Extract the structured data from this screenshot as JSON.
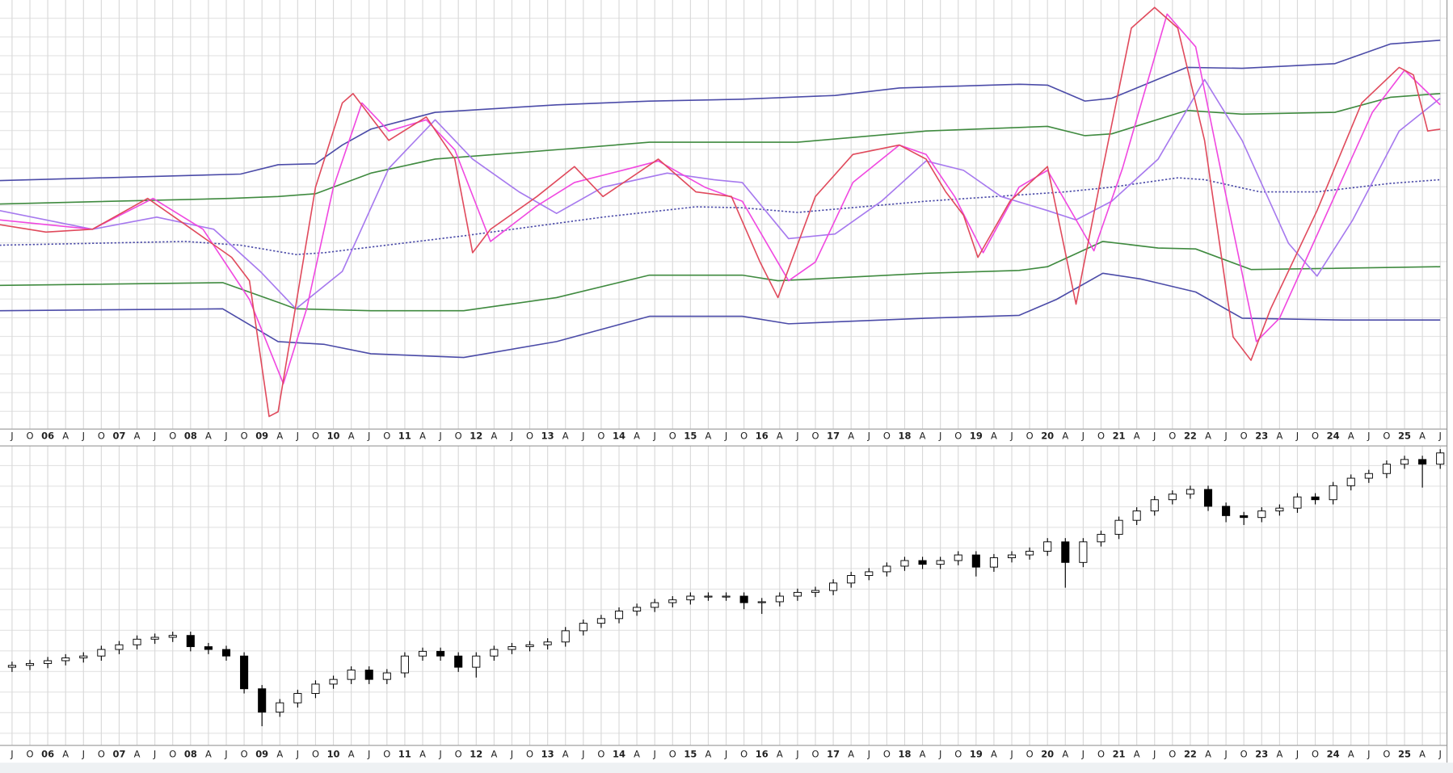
{
  "chart_data": [
    {
      "type": "line",
      "grid": true,
      "xlim": [
        -0.675,
        80.3
      ],
      "ylim": [
        0,
        460
      ],
      "categories": [
        "J",
        "O",
        "06",
        "A",
        "J",
        "O",
        "07",
        "A",
        "J",
        "O",
        "08",
        "A",
        "J",
        "O",
        "09",
        "A",
        "J",
        "O",
        "10",
        "A",
        "J",
        "O",
        "11",
        "A",
        "J",
        "O",
        "12",
        "A",
        "J",
        "O",
        "13",
        "A",
        "J",
        "O",
        "14",
        "A",
        "J",
        "O",
        "15",
        "A",
        "J",
        "O",
        "16",
        "A",
        "J",
        "O",
        "17",
        "A",
        "J",
        "O",
        "18",
        "A",
        "J",
        "O",
        "19",
        "A",
        "J",
        "O",
        "20",
        "A",
        "J",
        "O",
        "21",
        "A",
        "J",
        "O",
        "22",
        "A",
        "J",
        "O",
        "23",
        "A",
        "J",
        "O",
        "24",
        "A",
        "J",
        "O",
        "25",
        "A",
        "J"
      ],
      "series": [
        {
          "color": "#4b4ba8",
          "x": [
            -0.7,
            12.8,
            14.9,
            17.0,
            18.5,
            20.1,
            23.7,
            30.5,
            35.7,
            40.9,
            46.1,
            49.7,
            56.4,
            58.0,
            60.1,
            61.6,
            65.8,
            68.9,
            74.1,
            77.2,
            80.0
          ],
          "values": [
            267,
            274,
            284,
            285,
            305,
            322,
            340,
            348,
            352,
            354,
            358,
            366,
            370,
            369,
            352,
            355,
            388,
            387,
            392,
            413,
            417
          ]
        },
        {
          "color": "#3f8a3f",
          "x": [
            -0.7,
            12.3,
            14.9,
            17.0,
            20.1,
            23.7,
            30.5,
            35.7,
            44.0,
            51.2,
            58.0,
            60.1,
            61.6,
            65.8,
            68.9,
            74.1,
            77.2,
            80.0
          ],
          "values": [
            242,
            248,
            250,
            253,
            275,
            290,
            300,
            308,
            308,
            320,
            325,
            315,
            317,
            342,
            338,
            340,
            356,
            360
          ]
        },
        {
          "color": "#4b4ba8",
          "style": "dotted",
          "x": [
            -0.7,
            9.7,
            12.8,
            15.9,
            17.5,
            25.3,
            33.1,
            38.3,
            40.9,
            44.0,
            51.2,
            59.0,
            61.6,
            65.3,
            66.8,
            69.9,
            73.1,
            77.2,
            80.0
          ],
          "values": [
            198,
            202,
            198,
            188,
            190,
            208,
            228,
            239,
            238,
            233,
            245,
            255,
            260,
            270,
            268,
            255,
            255,
            264,
            268
          ]
        },
        {
          "color": "#3f8a3f",
          "x": [
            -0.7,
            11.8,
            14.9,
            15.9,
            20.1,
            25.3,
            30.5,
            35.7,
            40.9,
            42.9,
            46.1,
            51.2,
            56.4,
            58.0,
            61.1,
            64.2,
            66.3,
            69.4,
            80.0
          ],
          "values": [
            155,
            158,
            137,
            130,
            128,
            128,
            142,
            166,
            166,
            160,
            163,
            168,
            171,
            175,
            202,
            195,
            194,
            172,
            175
          ]
        },
        {
          "color": "#4b4ba8",
          "x": [
            -0.7,
            11.8,
            14.9,
            17.5,
            20.1,
            25.3,
            30.5,
            35.7,
            40.9,
            43.5,
            51.2,
            56.4,
            58.5,
            61.1,
            63.2,
            66.3,
            68.9,
            74.6,
            80.0
          ],
          "values": [
            128,
            130,
            95,
            92,
            82,
            78,
            95,
            122,
            122,
            114,
            120,
            123,
            140,
            168,
            162,
            148,
            120,
            118,
            118
          ]
        },
        {
          "color": "#a679ee",
          "x": [
            -0.7,
            4.5,
            8.1,
            11.3,
            13.9,
            15.9,
            18.5,
            21.1,
            23.7,
            25.8,
            28.4,
            30.5,
            33.1,
            36.7,
            39.3,
            40.9,
            43.5,
            46.1,
            48.7,
            51.2,
            53.3,
            55.4,
            58.0,
            59.6,
            61.6,
            64.2,
            66.8,
            68.9,
            71.5,
            73.1,
            75.1,
            77.7,
            80.0
          ],
          "values": [
            235,
            215,
            228,
            215,
            170,
            130,
            170,
            280,
            332,
            290,
            255,
            232,
            260,
            275,
            268,
            265,
            205,
            210,
            245,
            288,
            278,
            250,
            235,
            225,
            245,
            290,
            375,
            310,
            200,
            165,
            225,
            320,
            355
          ]
        },
        {
          "color": "#f048e0",
          "x": [
            -0.7,
            4.5,
            7.9,
            10.7,
            13.3,
            15.2,
            16.5,
            18.0,
            19.6,
            21.1,
            23.2,
            24.8,
            26.8,
            29.4,
            31.5,
            34.6,
            36.2,
            38.8,
            40.9,
            43.5,
            45.0,
            47.1,
            49.7,
            51.2,
            52.8,
            54.4,
            56.4,
            58.0,
            60.6,
            62.2,
            64.7,
            66.3,
            67.9,
            69.7,
            71.0,
            73.6,
            76.2,
            78.0,
            80.0
          ],
          "values": [
            225,
            215,
            248,
            215,
            140,
            50,
            130,
            260,
            350,
            320,
            332,
            300,
            202,
            240,
            265,
            280,
            288,
            260,
            245,
            160,
            180,
            265,
            305,
            295,
            250,
            190,
            260,
            278,
            192,
            280,
            445,
            410,
            260,
            95,
            120,
            230,
            340,
            385,
            348
          ]
        },
        {
          "color": "#e04a5c",
          "x": [
            -0.7,
            1.9,
            4.5,
            7.6,
            9.7,
            12.3,
            13.3,
            14.4,
            14.9,
            17.0,
            18.5,
            19.1,
            20.1,
            21.1,
            23.2,
            24.8,
            25.8,
            26.8,
            29.4,
            31.5,
            33.1,
            36.2,
            38.3,
            40.3,
            41.9,
            42.9,
            45.0,
            47.1,
            49.7,
            51.2,
            52.3,
            53.3,
            54.1,
            55.9,
            58.0,
            59.6,
            61.1,
            62.7,
            64.0,
            65.3,
            66.8,
            68.4,
            69.4,
            70.5,
            73.1,
            75.6,
            77.7,
            78.5,
            79.3,
            80.0
          ],
          "values": [
            220,
            212,
            215,
            248,
            220,
            185,
            160,
            15,
            20,
            260,
            350,
            360,
            335,
            310,
            335,
            290,
            190,
            215,
            250,
            282,
            250,
            290,
            255,
            250,
            180,
            142,
            250,
            295,
            305,
            290,
            255,
            230,
            185,
            245,
            282,
            135,
            280,
            430,
            452,
            430,
            310,
            100,
            75,
            130,
            235,
            350,
            388,
            380,
            320,
            322
          ]
        }
      ]
    },
    {
      "type": "candlestick",
      "grid": true,
      "xlim": [
        -0.675,
        80.3
      ],
      "ylim": [
        0,
        320
      ],
      "categories": [
        "J",
        "O",
        "06",
        "A",
        "J",
        "O",
        "07",
        "A",
        "J",
        "O",
        "08",
        "A",
        "J",
        "O",
        "09",
        "A",
        "J",
        "O",
        "10",
        "A",
        "J",
        "O",
        "11",
        "A",
        "J",
        "O",
        "12",
        "A",
        "J",
        "O",
        "13",
        "A",
        "J",
        "O",
        "14",
        "A",
        "J",
        "O",
        "15",
        "A",
        "J",
        "O",
        "16",
        "A",
        "J",
        "O",
        "17",
        "A",
        "J",
        "O",
        "18",
        "A",
        "J",
        "O",
        "19",
        "A",
        "J",
        "O",
        "20",
        "A",
        "J",
        "O",
        "21",
        "A",
        "J",
        "O",
        "22",
        "A",
        "J",
        "O",
        "23",
        "A",
        "J",
        "O",
        "24",
        "A",
        "J",
        "O",
        "25",
        "A",
        "J"
      ],
      "open": [
        83,
        85,
        87,
        90,
        93,
        95,
        102,
        107,
        113,
        115,
        117,
        105,
        102,
        95,
        60,
        35,
        45,
        55,
        65,
        70,
        80,
        70,
        77,
        95,
        100,
        95,
        83,
        95,
        102,
        105,
        107,
        110,
        122,
        130,
        135,
        143,
        147,
        152,
        155,
        159,
        159,
        159,
        152,
        153,
        159,
        163,
        165,
        173,
        181,
        185,
        191,
        197,
        193,
        197,
        203,
        190,
        200,
        203,
        207,
        217,
        195,
        217,
        225,
        240,
        250,
        262,
        268,
        273,
        255,
        245,
        243,
        250,
        253,
        265,
        262,
        277,
        285,
        290,
        300,
        305,
        300
      ],
      "high": [
        89,
        91,
        94,
        97,
        99,
        106,
        111,
        117,
        119,
        121,
        121,
        109,
        106,
        99,
        64,
        49,
        59,
        69,
        74,
        84,
        84,
        81,
        99,
        104,
        104,
        99,
        99,
        106,
        109,
        111,
        114,
        126,
        134,
        139,
        147,
        151,
        156,
        159,
        163,
        163,
        163,
        163,
        157,
        163,
        167,
        169,
        177,
        185,
        189,
        195,
        201,
        201,
        201,
        207,
        207,
        204,
        207,
        211,
        221,
        221,
        221,
        229,
        244,
        254,
        266,
        272,
        277,
        277,
        259,
        249,
        254,
        257,
        269,
        269,
        281,
        289,
        294,
        304,
        309,
        309,
        316
      ],
      "low": [
        78,
        80,
        82,
        85,
        88,
        90,
        97,
        102,
        108,
        110,
        100,
        97,
        90,
        55,
        20,
        30,
        40,
        50,
        60,
        65,
        65,
        65,
        72,
        90,
        90,
        78,
        72,
        90,
        97,
        100,
        102,
        105,
        117,
        125,
        130,
        138,
        142,
        147,
        150,
        154,
        154,
        145,
        140,
        148,
        154,
        158,
        160,
        168,
        176,
        180,
        186,
        188,
        188,
        192,
        180,
        185,
        195,
        198,
        202,
        168,
        190,
        212,
        220,
        235,
        245,
        257,
        263,
        250,
        238,
        235,
        238,
        245,
        248,
        257,
        257,
        272,
        280,
        285,
        295,
        275,
        295
      ],
      "close": [
        85,
        87,
        90,
        93,
        95,
        102,
        107,
        113,
        115,
        117,
        105,
        102,
        95,
        60,
        35,
        45,
        55,
        65,
        70,
        80,
        70,
        77,
        95,
        100,
        95,
        83,
        95,
        102,
        105,
        107,
        110,
        122,
        130,
        135,
        143,
        147,
        152,
        155,
        159,
        159,
        159,
        152,
        153,
        159,
        163,
        165,
        173,
        181,
        185,
        191,
        197,
        193,
        197,
        203,
        190,
        200,
        203,
        207,
        217,
        195,
        217,
        225,
        240,
        250,
        262,
        268,
        273,
        255,
        245,
        243,
        250,
        253,
        265,
        262,
        277,
        285,
        290,
        300,
        305,
        300,
        312
      ]
    }
  ]
}
